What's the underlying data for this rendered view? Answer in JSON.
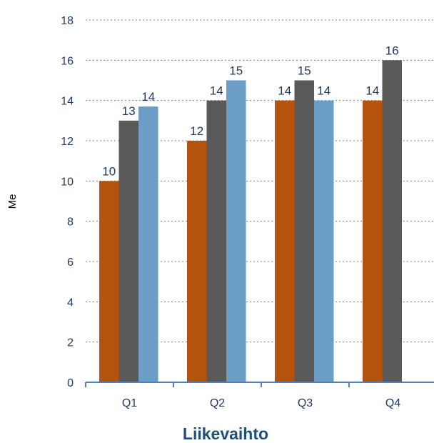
{
  "chart_data": {
    "type": "bar",
    "title": "Liikevaihto",
    "xlabel": "",
    "ylabel": "Me",
    "categories": [
      "Q1",
      "Q2",
      "Q3",
      "Q4"
    ],
    "ylim": [
      0,
      18
    ],
    "yticks": [
      0,
      2,
      4,
      6,
      8,
      10,
      12,
      14,
      16,
      18
    ],
    "grid": "horizontal-dotted",
    "legend": "none",
    "series": [
      {
        "color": "#b5520b",
        "values": [
          10,
          12,
          14,
          14
        ],
        "labels": [
          "10",
          "12",
          "14",
          "14"
        ]
      },
      {
        "color": "#595959",
        "values": [
          13,
          14,
          15,
          16
        ],
        "labels": [
          "13",
          "14",
          "15",
          "16"
        ]
      },
      {
        "color": "#6b9ec7",
        "values": [
          13.7,
          15,
          14,
          null
        ],
        "labels": [
          "14",
          "15",
          "14",
          ""
        ]
      }
    ],
    "colors": {
      "axis": "#4f81bd",
      "grid": "#7f7f7f",
      "labels": "#1f3864",
      "title": "#1f4e79"
    }
  }
}
